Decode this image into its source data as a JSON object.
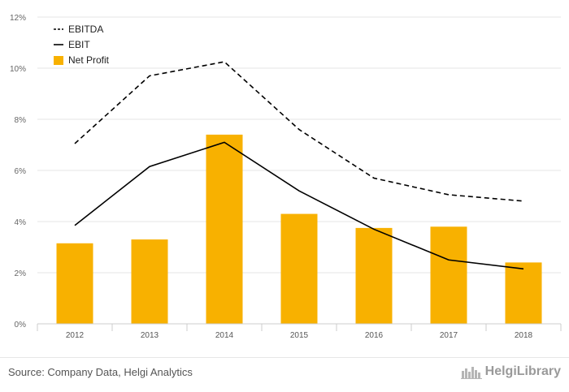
{
  "chart_data": {
    "type": "bar+line",
    "categories": [
      "2012",
      "2013",
      "2014",
      "2015",
      "2016",
      "2017",
      "2018"
    ],
    "ylim": [
      0,
      12
    ],
    "yticks": [
      "0%",
      "2%",
      "4%",
      "6%",
      "8%",
      "10%",
      "12%"
    ],
    "ytick_values": [
      0,
      2,
      4,
      6,
      8,
      10,
      12
    ],
    "grid": true,
    "legend_position": "top-left",
    "series": [
      {
        "name": "EBITDA",
        "type": "line",
        "style": "dashed",
        "color": "#000000",
        "values": [
          7.05,
          9.7,
          10.25,
          7.6,
          5.7,
          5.05,
          4.8
        ]
      },
      {
        "name": "EBIT",
        "type": "line",
        "style": "solid",
        "color": "#000000",
        "values": [
          3.85,
          6.15,
          7.1,
          5.2,
          3.7,
          2.5,
          2.15
        ]
      },
      {
        "name": "Net Profit",
        "type": "bar",
        "color": "#F8B100",
        "values": [
          3.15,
          3.3,
          7.4,
          4.3,
          3.75,
          3.8,
          2.4
        ]
      }
    ]
  },
  "footer": {
    "source": "Source: Company Data, Helgi Analytics",
    "brand": "HelgiLibrary"
  }
}
